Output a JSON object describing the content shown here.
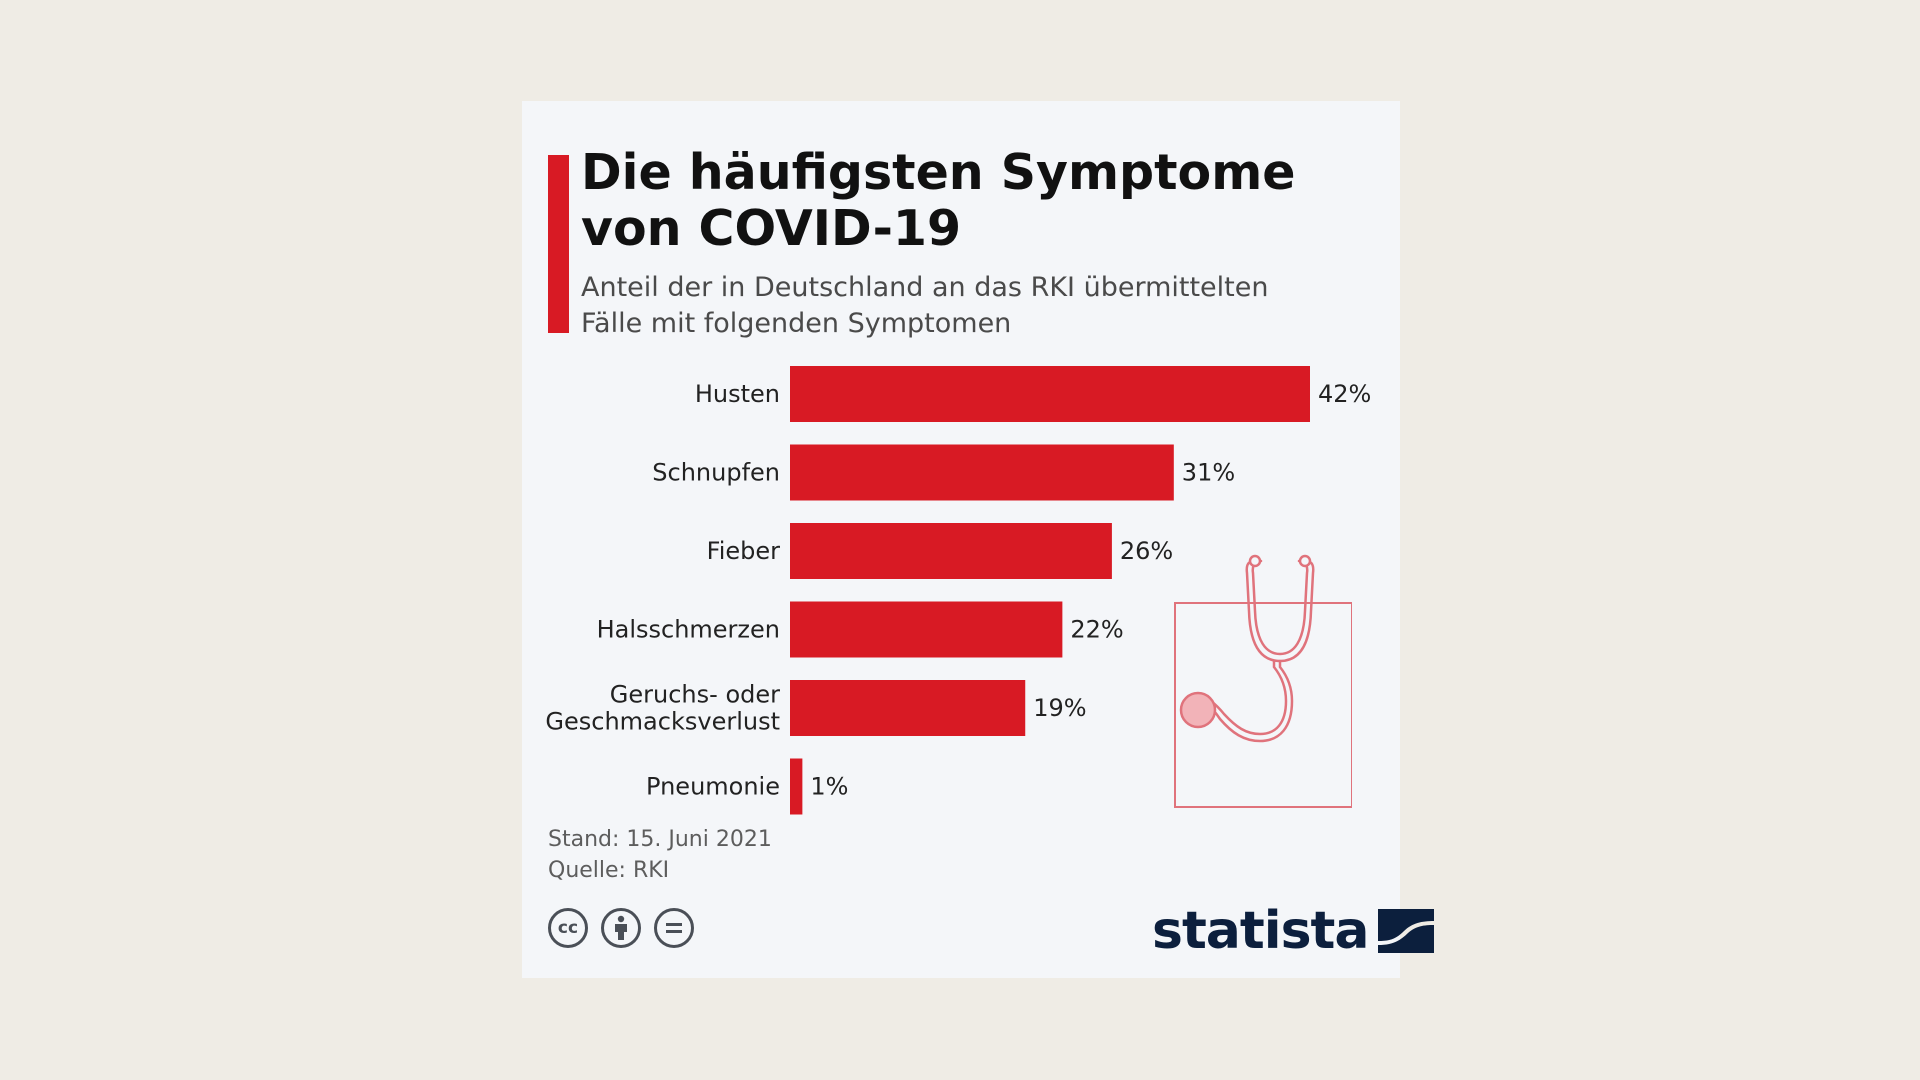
{
  "title": "Die häufigsten Symptome\nvon COVID-19",
  "subtitle": "Anteil der in Deutschland an das RKI übermittelten\nFälle mit folgenden Symptomen",
  "chart_data": {
    "type": "bar",
    "orientation": "horizontal",
    "categories": [
      "Husten",
      "Schnupfen",
      "Fieber",
      "Halsschmerzen",
      "Geruchs- oder\nGeschmacksverlust",
      "Pneumonie"
    ],
    "values": [
      42,
      31,
      26,
      22,
      19,
      1
    ],
    "value_labels": [
      "42%",
      "31%",
      "26%",
      "22%",
      "19%",
      "1%"
    ],
    "xlim": [
      0,
      42
    ],
    "grid": false,
    "bar_color": "#d81a24"
  },
  "footer": {
    "stand": "Stand: 15. Juni 2021",
    "quelle": "Quelle: RKI"
  },
  "license_icons": [
    "cc-icon",
    "by-attribution-icon",
    "no-derivatives-icon"
  ],
  "logo_text": "statista",
  "colors": {
    "accent": "#d81a24",
    "brand_navy": "#0c1f3d",
    "illustration": "#e0737c"
  }
}
